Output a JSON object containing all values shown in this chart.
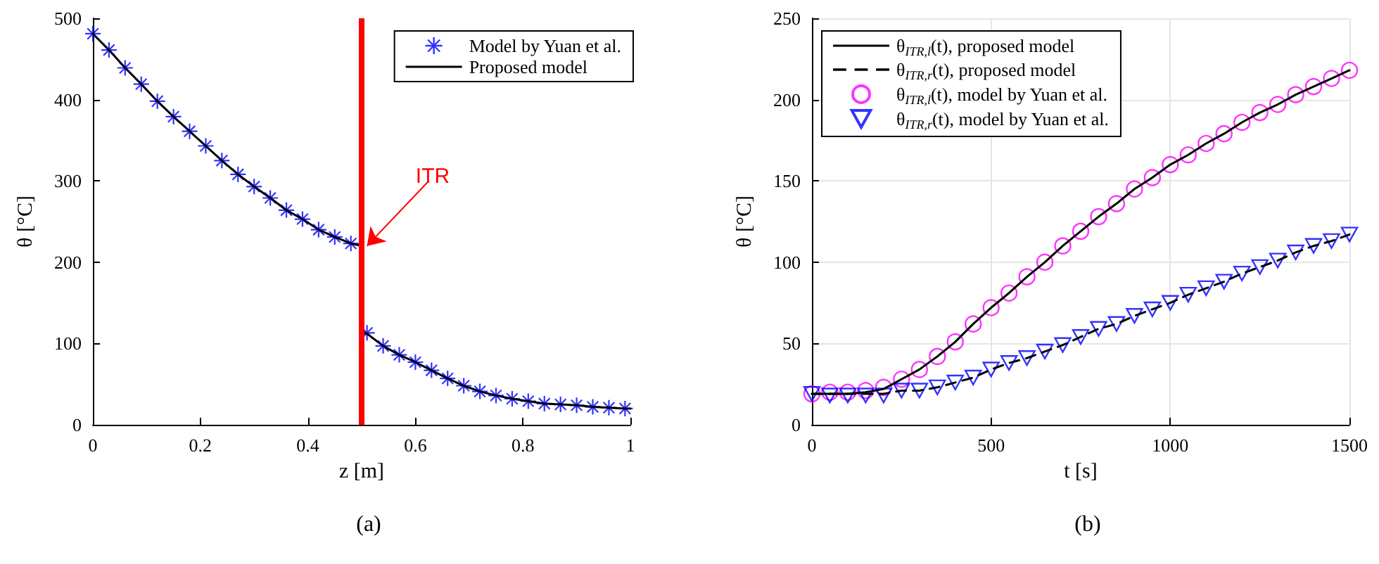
{
  "chart_data": [
    {
      "type": "line",
      "xlabel": "z [m]",
      "ylabel": "θ [°C]",
      "xlim": [
        0,
        1
      ],
      "xticks": [
        0,
        0.2,
        0.4,
        0.6,
        0.8,
        1
      ],
      "ylim": [
        0,
        500
      ],
      "yticks": [
        0,
        100,
        200,
        300,
        400,
        500
      ],
      "grid": false,
      "legend": "top right",
      "annotations": [
        {
          "text": "ITR",
          "x": 0.5,
          "y": 220
        },
        "(a)"
      ],
      "ref_lines": [
        {
          "axis": "x",
          "value": 0.5,
          "color": "#ff0000"
        }
      ],
      "series": [
        {
          "name": "Model by Yuan et al.",
          "type": "scatter",
          "marker": "star",
          "color": "#0000ff",
          "x": [
            0,
            0.03,
            0.06,
            0.09,
            0.12,
            0.15,
            0.18,
            0.21,
            0.24,
            0.27,
            0.3,
            0.33,
            0.36,
            0.39,
            0.42,
            0.45,
            0.48,
            0.51,
            0.54,
            0.57,
            0.6,
            0.63,
            0.66,
            0.69,
            0.72,
            0.75,
            0.78,
            0.81,
            0.84,
            0.87,
            0.9,
            0.93,
            0.96,
            0.99
          ],
          "values": [
            481,
            461,
            439,
            419,
            398,
            379,
            361,
            343,
            325,
            308,
            293,
            279,
            264,
            253,
            240,
            231,
            223,
            113,
            97,
            86,
            77,
            67,
            57,
            48,
            41,
            36,
            32,
            29,
            26,
            25,
            24,
            22,
            21,
            20
          ]
        },
        {
          "name": "Proposed model",
          "marker": "none",
          "line_style": "solid",
          "color": "#000000",
          "x": [
            0,
            0.03,
            0.06,
            0.09,
            0.12,
            0.15,
            0.18,
            0.21,
            0.24,
            0.27,
            0.3,
            0.33,
            0.36,
            0.39,
            0.42,
            0.45,
            0.48,
            0.5
          ],
          "values": [
            481,
            461,
            439,
            419,
            398,
            379,
            361,
            343,
            325,
            308,
            293,
            279,
            264,
            253,
            240,
            231,
            223,
            220
          ]
        },
        {
          "marker": "none",
          "line_style": "solid",
          "color": "#000000",
          "x": [
            0.5,
            0.51,
            0.54,
            0.57,
            0.6,
            0.63,
            0.66,
            0.69,
            0.72,
            0.75,
            0.78,
            0.81,
            0.84,
            0.87,
            0.9,
            0.93,
            0.96,
            0.99,
            1
          ],
          "values": [
            115,
            112,
            97,
            86,
            77,
            67,
            57,
            48,
            41,
            36,
            32,
            29,
            26,
            25,
            24,
            22,
            21,
            20,
            20
          ]
        }
      ]
    },
    {
      "type": "line",
      "xlabel": "t [s]",
      "ylabel": "θ [°C]",
      "xlim": [
        0,
        1500
      ],
      "xticks": [
        0,
        500,
        1000,
        1500
      ],
      "ylim": [
        0,
        250
      ],
      "yticks": [
        0,
        50,
        100,
        150,
        200,
        250
      ],
      "grid": true,
      "legend": "top left",
      "annotations": [
        "(b)"
      ],
      "series": [
        {
          "name": "θ$_{ITR,l}$(t), proposed model",
          "marker": "none",
          "line_style": "solid",
          "color": "#000000",
          "x": [
            0,
            50,
            100,
            150,
            200,
            250,
            300,
            350,
            400,
            450,
            500,
            550,
            600,
            650,
            700,
            750,
            800,
            850,
            900,
            950,
            1000,
            1050,
            1100,
            1150,
            1200,
            1250,
            1300,
            1350,
            1400,
            1450,
            1500
          ],
          "values": [
            19,
            19,
            19,
            20,
            22,
            28,
            34,
            42,
            51,
            62,
            72,
            81,
            91,
            100,
            110,
            119,
            128,
            136,
            145,
            152,
            160,
            166,
            173,
            179,
            186,
            192,
            197,
            203,
            208,
            213,
            218
          ]
        },
        {
          "name": "θ$_{ITR,r}$(t), proposed model",
          "marker": "none",
          "line_style": "dashed",
          "color": "#000000",
          "x": [
            0,
            50,
            100,
            150,
            200,
            250,
            300,
            350,
            400,
            450,
            500,
            550,
            600,
            650,
            700,
            750,
            800,
            850,
            900,
            950,
            1000,
            1050,
            1100,
            1150,
            1200,
            1250,
            1300,
            1350,
            1400,
            1450,
            1500
          ],
          "values": [
            19,
            19,
            19,
            19,
            19,
            21,
            21,
            23,
            26,
            29,
            34,
            38,
            41,
            45,
            49,
            54,
            59,
            62,
            67,
            71,
            75,
            80,
            84,
            88,
            93,
            97,
            101,
            106,
            110,
            113,
            117
          ]
        },
        {
          "name": "θ$_{ITR,l}$(t), model by Yuan et al.",
          "type": "scatter",
          "marker": "circle",
          "color": "#ff00ff",
          "x": [
            0,
            50,
            100,
            150,
            200,
            250,
            300,
            350,
            400,
            450,
            500,
            550,
            600,
            650,
            700,
            750,
            800,
            850,
            900,
            950,
            1000,
            1050,
            1100,
            1150,
            1200,
            1250,
            1300,
            1350,
            1400,
            1450,
            1500
          ],
          "values": [
            19,
            20,
            20,
            21,
            23,
            28,
            34,
            42,
            51,
            62,
            72,
            81,
            91,
            100,
            110,
            119,
            128,
            136,
            145,
            152,
            160,
            166,
            173,
            179,
            186,
            192,
            197,
            203,
            208,
            213,
            218
          ]
        },
        {
          "name": "θ$_{ITR,r}$(t), model by Yuan et al.",
          "type": "scatter",
          "marker": "triangle",
          "color": "#0000ff",
          "x": [
            0,
            50,
            100,
            150,
            200,
            250,
            300,
            350,
            400,
            450,
            500,
            550,
            600,
            650,
            700,
            750,
            800,
            850,
            900,
            950,
            1000,
            1050,
            1100,
            1150,
            1200,
            1250,
            1300,
            1350,
            1400,
            1450,
            1500
          ],
          "values": [
            19,
            18,
            18,
            18,
            18,
            21,
            21,
            23,
            26,
            29,
            34,
            38,
            41,
            45,
            49,
            54,
            59,
            62,
            67,
            71,
            75,
            80,
            84,
            88,
            93,
            97,
            101,
            106,
            110,
            113,
            117
          ]
        }
      ]
    }
  ]
}
